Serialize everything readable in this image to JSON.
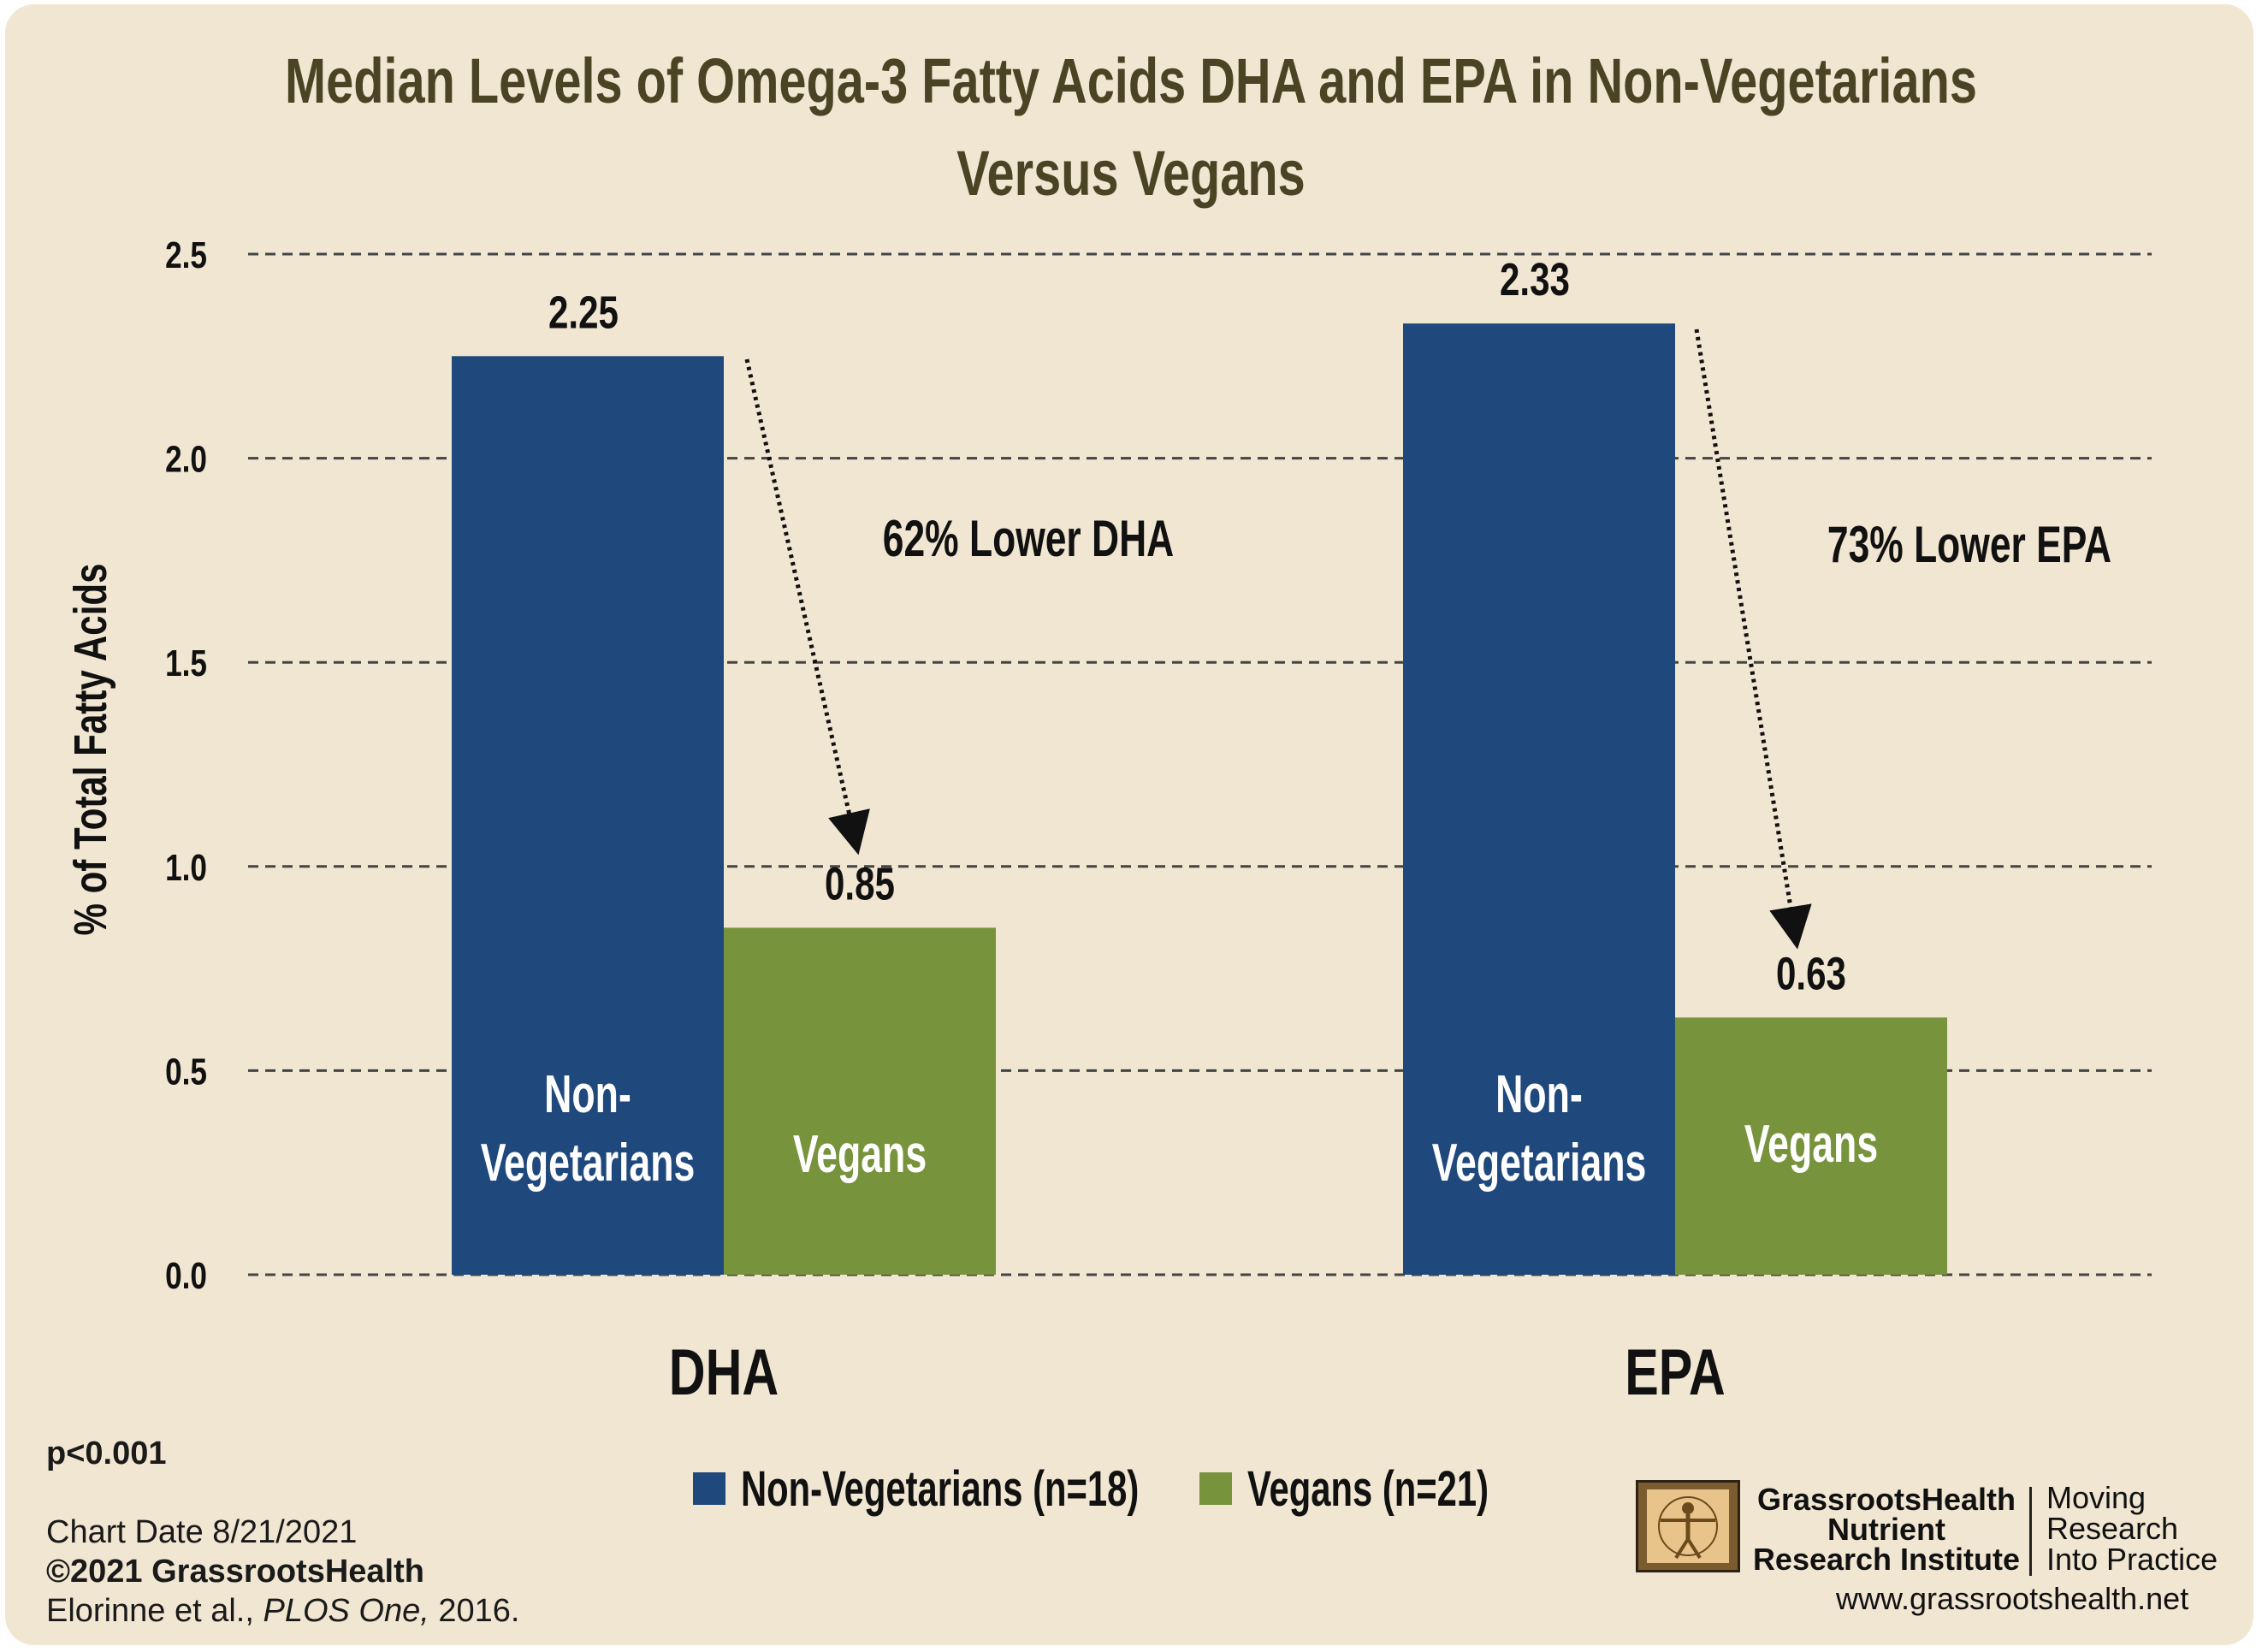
{
  "chart_data": {
    "type": "bar",
    "title_line1": "Median Levels of Omega-3 Fatty Acids DHA and EPA in Non-Vegetarians",
    "title_line2": "Versus Vegans",
    "ylabel": "% of Total Fatty Acids",
    "ylim": [
      0,
      2.5
    ],
    "yticks": [
      "0.0",
      "0.5",
      "1.0",
      "1.5",
      "2.0",
      "2.5"
    ],
    "categories": [
      "DHA",
      "EPA"
    ],
    "series": [
      {
        "name": "Non-Vegetarians (n=18)",
        "bar_label": [
          "Non-",
          "Vegetarians"
        ],
        "values": [
          2.25,
          2.33
        ],
        "color": "#1f487c"
      },
      {
        "name": "Vegans (n=21)",
        "bar_label": [
          "Vegans"
        ],
        "values": [
          0.85,
          0.63
        ],
        "color": "#77933c"
      }
    ],
    "annotations": [
      "62% Lower DHA",
      "73% Lower EPA"
    ],
    "grid": true,
    "legend": "bottom-center"
  },
  "footer": {
    "pvalue": "p<0.001",
    "chart_date": "Chart Date 8/21/2021",
    "copyright": "©2021 GrassrootsHealth",
    "citation_authors": "Elorinne et al., ",
    "citation_journal": "PLOS One,",
    "citation_year": " 2016."
  },
  "branding": {
    "org_line1": "GrassrootsHealth",
    "org_line2": "Nutrient",
    "org_line3": "Research Institute",
    "tagline_line1": "Moving",
    "tagline_line2": "Research",
    "tagline_line3": "Into Practice",
    "url": "www.grassrootshealth.net"
  },
  "colors": {
    "background": "#f0e6d2",
    "title": "#4a4324",
    "gridline": "#444444"
  }
}
